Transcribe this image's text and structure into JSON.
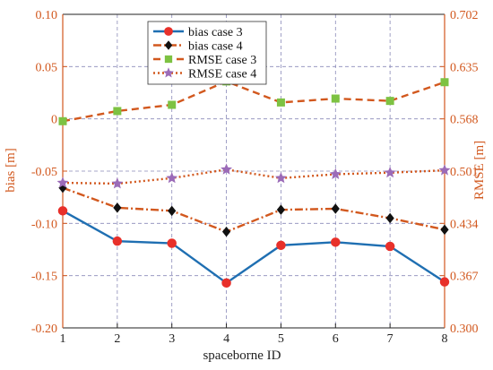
{
  "chart_data": {
    "type": "line",
    "title": "",
    "xlabel": "spaceborne ID",
    "ylabel_left": "bias [m]",
    "ylabel_right": "RMSE [m]",
    "x": [
      1,
      2,
      3,
      4,
      5,
      6,
      7,
      8
    ],
    "x_ticks": [
      "1",
      "2",
      "3",
      "4",
      "5",
      "6",
      "7",
      "8"
    ],
    "xlim": [
      1,
      8
    ],
    "ylim_left": [
      -0.2,
      0.1
    ],
    "ylim_right": [
      0.3,
      0.702
    ],
    "y_ticks_left": [
      "-0.20",
      "-0.15",
      "-0.10",
      "-0.05",
      "0",
      "0.05",
      "0.10"
    ],
    "y_ticks_right": [
      "0.300",
      "0.367",
      "0.434",
      "0.501",
      "0.568",
      "0.635",
      "0.702"
    ],
    "grid": true,
    "legend_position": "top-left",
    "series": [
      {
        "name": "bias case 3",
        "axis": "left",
        "color": "#1f6fb2",
        "marker": "circle",
        "marker_color": "#e8302a",
        "line_style": "solid",
        "values": [
          -0.088,
          -0.117,
          -0.119,
          -0.157,
          -0.121,
          -0.118,
          -0.122,
          -0.156
        ]
      },
      {
        "name": "bias case 4",
        "axis": "left",
        "color": "#d2581e",
        "marker": "diamond",
        "marker_color": "#111111",
        "line_style": "dashdot",
        "values": [
          -0.066,
          -0.085,
          -0.088,
          -0.108,
          -0.087,
          -0.086,
          -0.095,
          -0.106
        ]
      },
      {
        "name": "RMSE case 3",
        "axis": "right",
        "color": "#d2581e",
        "marker": "square",
        "marker_color": "#7dc242",
        "line_style": "dashed",
        "values": [
          0.565,
          0.578,
          0.586,
          0.616,
          0.589,
          0.594,
          0.591,
          0.615
        ]
      },
      {
        "name": "RMSE case 4",
        "axis": "right",
        "color": "#d2581e",
        "marker": "star",
        "marker_color": "#9b6bb8",
        "line_style": "dotted",
        "values": [
          0.486,
          0.485,
          0.492,
          0.503,
          0.492,
          0.497,
          0.499,
          0.502
        ]
      }
    ],
    "colors": {
      "axis_left": "#d2581e",
      "axis_right": "#d2581e",
      "axis_bottom": "#222222",
      "grid": "#8a8ab8"
    }
  }
}
